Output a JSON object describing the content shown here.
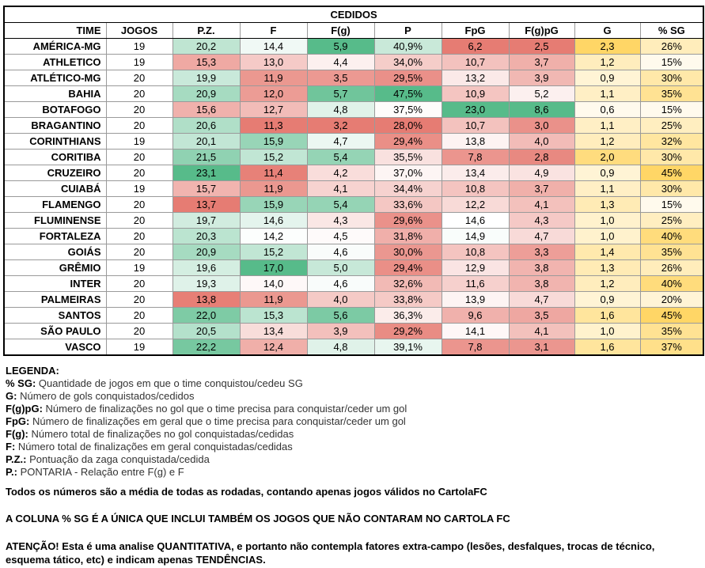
{
  "title": "CEDIDOS",
  "columns": [
    "TIME",
    "JOGOS",
    "P.Z.",
    "F",
    "F(g)",
    "P",
    "FpG",
    "F(g)pG",
    "G",
    "% SG"
  ],
  "rows": [
    {
      "team": "AMÉRICA-MG",
      "jogos": "19",
      "pz": "20,2",
      "f": "14,4",
      "fg": "5,9",
      "p": "40,9%",
      "fpg": "6,2",
      "fgpg": "2,5",
      "g": "2,3",
      "sg": "26%"
    },
    {
      "team": "ATHLETICO",
      "jogos": "19",
      "pz": "15,3",
      "f": "13,0",
      "fg": "4,4",
      "p": "34,0%",
      "fpg": "10,7",
      "fgpg": "3,7",
      "g": "1,2",
      "sg": "15%"
    },
    {
      "team": "ATLÉTICO-MG",
      "jogos": "20",
      "pz": "19,9",
      "f": "11,9",
      "fg": "3,5",
      "p": "29,5%",
      "fpg": "13,2",
      "fgpg": "3,9",
      "g": "0,9",
      "sg": "30%"
    },
    {
      "team": "BAHIA",
      "jogos": "20",
      "pz": "20,9",
      "f": "12,0",
      "fg": "5,7",
      "p": "47,5%",
      "fpg": "10,9",
      "fgpg": "5,2",
      "g": "1,1",
      "sg": "35%"
    },
    {
      "team": "BOTAFOGO",
      "jogos": "20",
      "pz": "15,6",
      "f": "12,7",
      "fg": "4,8",
      "p": "37,5%",
      "fpg": "23,0",
      "fgpg": "8,6",
      "g": "0,6",
      "sg": "15%"
    },
    {
      "team": "BRAGANTINO",
      "jogos": "20",
      "pz": "20,6",
      "f": "11,3",
      "fg": "3,2",
      "p": "28,0%",
      "fpg": "10,7",
      "fgpg": "3,0",
      "g": "1,1",
      "sg": "25%"
    },
    {
      "team": "CORINTHIANS",
      "jogos": "19",
      "pz": "20,1",
      "f": "15,9",
      "fg": "4,7",
      "p": "29,4%",
      "fpg": "13,8",
      "fgpg": "4,0",
      "g": "1,2",
      "sg": "32%"
    },
    {
      "team": "CORITIBA",
      "jogos": "20",
      "pz": "21,5",
      "f": "15,2",
      "fg": "5,4",
      "p": "35,5%",
      "fpg": "7,8",
      "fgpg": "2,8",
      "g": "2,0",
      "sg": "30%"
    },
    {
      "team": "CRUZEIRO",
      "jogos": "20",
      "pz": "23,1",
      "f": "11,4",
      "fg": "4,2",
      "p": "37,0%",
      "fpg": "13,4",
      "fgpg": "4,9",
      "g": "0,9",
      "sg": "45%"
    },
    {
      "team": "CUIABÁ",
      "jogos": "19",
      "pz": "15,7",
      "f": "11,9",
      "fg": "4,1",
      "p": "34,4%",
      "fpg": "10,8",
      "fgpg": "3,7",
      "g": "1,1",
      "sg": "30%"
    },
    {
      "team": "FLAMENGO",
      "jogos": "20",
      "pz": "13,7",
      "f": "15,9",
      "fg": "5,4",
      "p": "33,6%",
      "fpg": "12,2",
      "fgpg": "4,1",
      "g": "1,3",
      "sg": "15%"
    },
    {
      "team": "FLUMINENSE",
      "jogos": "20",
      "pz": "19,7",
      "f": "14,6",
      "fg": "4,3",
      "p": "29,6%",
      "fpg": "14,6",
      "fgpg": "4,3",
      "g": "1,0",
      "sg": "25%"
    },
    {
      "team": "FORTALEZA",
      "jogos": "20",
      "pz": "20,3",
      "f": "14,2",
      "fg": "4,5",
      "p": "31,8%",
      "fpg": "14,9",
      "fgpg": "4,7",
      "g": "1,0",
      "sg": "40%"
    },
    {
      "team": "GOIÁS",
      "jogos": "20",
      "pz": "20,9",
      "f": "15,2",
      "fg": "4,6",
      "p": "30,0%",
      "fpg": "10,8",
      "fgpg": "3,3",
      "g": "1,4",
      "sg": "35%"
    },
    {
      "team": "GRÊMIO",
      "jogos": "19",
      "pz": "19,6",
      "f": "17,0",
      "fg": "5,0",
      "p": "29,4%",
      "fpg": "12,9",
      "fgpg": "3,8",
      "g": "1,3",
      "sg": "26%"
    },
    {
      "team": "INTER",
      "jogos": "20",
      "pz": "19,3",
      "f": "14,0",
      "fg": "4,6",
      "p": "32,6%",
      "fpg": "11,6",
      "fgpg": "3,8",
      "g": "1,2",
      "sg": "40%"
    },
    {
      "team": "PALMEIRAS",
      "jogos": "20",
      "pz": "13,8",
      "f": "11,9",
      "fg": "4,0",
      "p": "33,8%",
      "fpg": "13,9",
      "fgpg": "4,7",
      "g": "0,9",
      "sg": "20%"
    },
    {
      "team": "SANTOS",
      "jogos": "20",
      "pz": "22,0",
      "f": "15,3",
      "fg": "5,6",
      "p": "36,3%",
      "fpg": "9,6",
      "fgpg": "3,5",
      "g": "1,6",
      "sg": "45%"
    },
    {
      "team": "SÃO PAULO",
      "jogos": "20",
      "pz": "20,5",
      "f": "13,4",
      "fg": "3,9",
      "p": "29,2%",
      "fpg": "14,1",
      "fgpg": "4,1",
      "g": "1,0",
      "sg": "35%"
    },
    {
      "team": "VASCO",
      "jogos": "19",
      "pz": "22,2",
      "f": "12,4",
      "fg": "4,8",
      "p": "39,1%",
      "fpg": "7,8",
      "fgpg": "3,1",
      "g": "1,6",
      "sg": "37%"
    }
  ],
  "legend": {
    "heading": "LEGENDA:",
    "items": [
      {
        "key": "% SG:",
        "desc": "Quantidade de jogos em que o time conquistou/cedeu SG"
      },
      {
        "key": "G:",
        "desc": "Número de gols conquistados/cedidos"
      },
      {
        "key": "F(g)pG:",
        "desc": "Número de finalizações no gol que o time precisa para conquistar/ceder um gol"
      },
      {
        "key": "FpG:",
        "desc": "Número de finalizações em geral que o time precisa para conquistar/ceder um gol"
      },
      {
        "key": "F(g):",
        "desc": "Número total de finalizações no gol conquistadas/cedidas"
      },
      {
        "key": "F:",
        "desc": "Número total de finalizações em geral conquistadas/cedidas"
      },
      {
        "key": "P.Z.:",
        "desc": "Pontuação da zaga conquistada/cedida"
      },
      {
        "key": "P.:",
        "desc": "PONTARIA - Relação entre F(g) e F"
      }
    ],
    "note1": "Todos os números são a média de todas as rodadas, contando apenas jogos válidos no CartolaFC",
    "note2": "A COLUNA % SG É A ÚNICA QUE INCLUI TAMBÉM OS JOGOS QUE NÃO CONTARAM NO CARTOLA FC",
    "warning": "ATENÇÃO! Esta é uma analise QUANTITATIVA, e portanto não contempla fatores extra-campo (lesões, desfalques, trocas de técnico, esquema tático, etc) e indicam apenas TENDÊNCIAS."
  },
  "colors": {
    "green_strong": "#57bb8a",
    "red_strong": "#e67c73",
    "yellow_strong": "#ffd666",
    "neutral": "#ffffff"
  }
}
